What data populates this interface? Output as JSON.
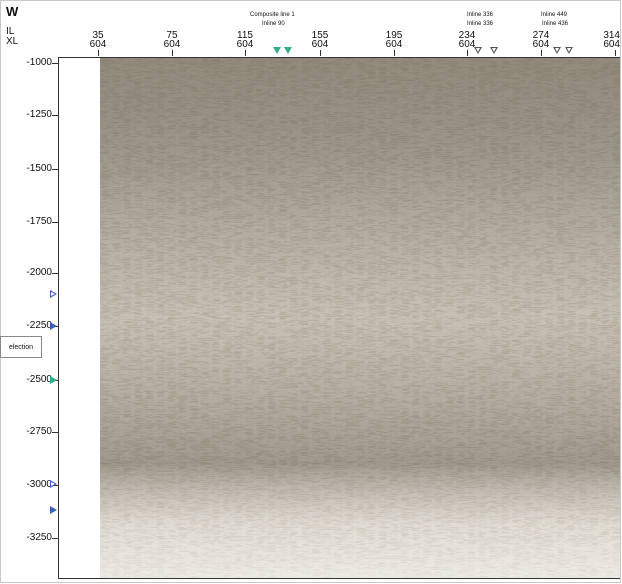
{
  "header": {
    "direction": "W",
    "il_label": "IL",
    "xl_label": "XL",
    "columns": [
      {
        "il": "35",
        "xl": "604"
      },
      {
        "il": "75",
        "xl": "604"
      },
      {
        "il": "115",
        "xl": "604"
      },
      {
        "il": "155",
        "xl": "604"
      },
      {
        "il": "195",
        "xl": "604"
      },
      {
        "il": "234",
        "xl": "604"
      },
      {
        "il": "274",
        "xl": "604"
      },
      {
        "il": "314",
        "xl": "604"
      }
    ],
    "overlay_labels": {
      "composite_line": "Composite line 1",
      "inline_90": "Inline 90",
      "inline_336_a": "Inline 336",
      "inline_336_b": "Inline 336",
      "inline_449": "Inline 449",
      "inline_436": "Inline 436"
    }
  },
  "yaxis": {
    "labels": [
      "-1000",
      "-1250",
      "-1500",
      "-1750",
      "-2000",
      "-2250",
      "-2500",
      "-2750",
      "-3000",
      "-3250"
    ]
  },
  "selection_button": "election",
  "colors": {
    "green_marker": "#2fb08a",
    "blue_marker": "#3a5fc0"
  }
}
